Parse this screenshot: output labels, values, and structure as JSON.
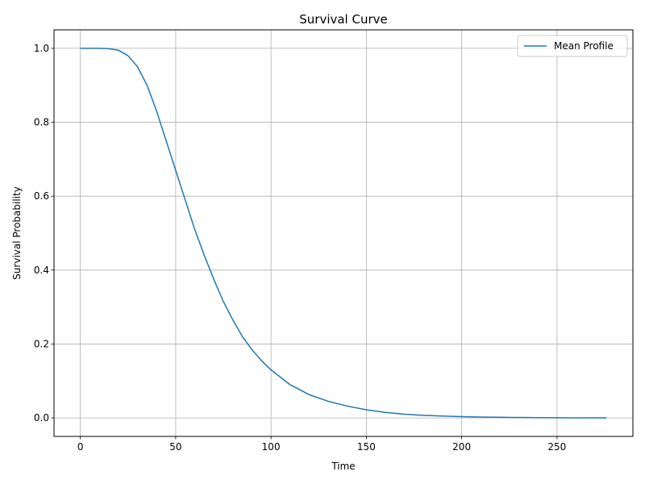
{
  "chart_data": {
    "type": "line",
    "title": "Survival Curve",
    "xlabel": "Time",
    "ylabel": "Survival Probability",
    "xlim": [
      -13.8,
      289.8
    ],
    "ylim": [
      -0.05,
      1.05
    ],
    "xticks": [
      0,
      50,
      100,
      150,
      200,
      250
    ],
    "yticks": [
      0.0,
      0.2,
      0.4,
      0.6,
      0.8,
      1.0
    ],
    "xtick_labels": [
      "0",
      "50",
      "100",
      "150",
      "200",
      "250"
    ],
    "ytick_labels": [
      "0.0",
      "0.2",
      "0.4",
      "0.6",
      "0.8",
      "1.0"
    ],
    "grid": true,
    "legend_position": "top-right",
    "series": [
      {
        "name": "Mean Profile",
        "color": "#1f77b4",
        "x": [
          0,
          5,
          10,
          15,
          20,
          25,
          30,
          35,
          40,
          45,
          50,
          55,
          60,
          65,
          70,
          75,
          80,
          85,
          90,
          95,
          100,
          110,
          120,
          130,
          140,
          150,
          160,
          170,
          180,
          190,
          200,
          210,
          220,
          230,
          240,
          250,
          260,
          270,
          276
        ],
        "y": [
          1.0,
          1.0,
          1.0,
          0.999,
          0.995,
          0.98,
          0.95,
          0.9,
          0.83,
          0.75,
          0.67,
          0.59,
          0.51,
          0.44,
          0.375,
          0.315,
          0.265,
          0.22,
          0.185,
          0.155,
          0.13,
          0.09,
          0.063,
          0.045,
          0.032,
          0.022,
          0.015,
          0.01,
          0.007,
          0.005,
          0.0035,
          0.0025,
          0.0017,
          0.0012,
          0.0008,
          0.0005,
          0.0003,
          0.0002,
          0.0001
        ]
      }
    ]
  }
}
